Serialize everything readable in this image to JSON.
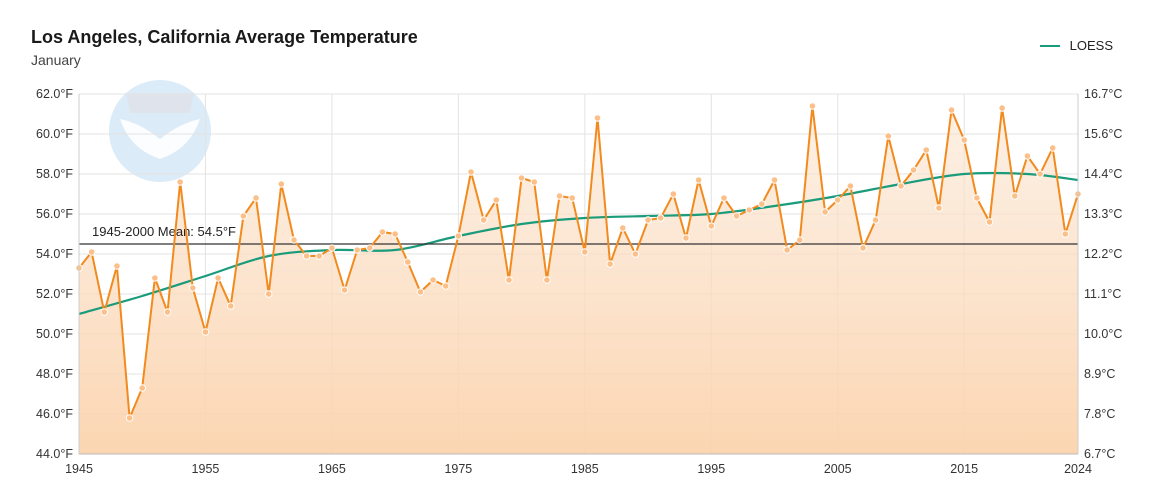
{
  "chart_data": {
    "type": "line",
    "title": "Los Angeles, California Average Temperature",
    "subtitle": "January",
    "x_range": [
      1945,
      2024
    ],
    "x_ticks": [
      1945,
      1955,
      1965,
      1975,
      1985,
      1995,
      2005,
      2015,
      2024
    ],
    "ylim": [
      44.0,
      62.0
    ],
    "y_ticks_f": [
      "44.0°F",
      "46.0°F",
      "48.0°F",
      "50.0°F",
      "52.0°F",
      "54.0°F",
      "56.0°F",
      "58.0°F",
      "60.0°F",
      "62.0°F"
    ],
    "y_ticks_c": [
      "6.7°C",
      "7.8°C",
      "8.9°C",
      "10.0°C",
      "11.1°C",
      "12.2°C",
      "13.3°C",
      "14.4°C",
      "15.6°C",
      "16.7°C"
    ],
    "mean": {
      "value": 54.5,
      "label": "1945-2000 Mean: 54.5°F"
    },
    "legend": [
      {
        "name": "LOESS",
        "color": "#1a9b7b"
      }
    ],
    "series": [
      {
        "name": "Average Temperature",
        "color": "#f28a1e",
        "years": [
          1945,
          1946,
          1947,
          1948,
          1949,
          1950,
          1951,
          1952,
          1953,
          1954,
          1955,
          1956,
          1957,
          1958,
          1959,
          1960,
          1961,
          1962,
          1963,
          1964,
          1965,
          1966,
          1967,
          1968,
          1969,
          1970,
          1971,
          1972,
          1973,
          1974,
          1975,
          1976,
          1977,
          1978,
          1979,
          1980,
          1981,
          1982,
          1983,
          1984,
          1985,
          1986,
          1987,
          1988,
          1989,
          1990,
          1991,
          1992,
          1993,
          1994,
          1995,
          1996,
          1997,
          1998,
          1999,
          2000,
          2001,
          2002,
          2003,
          2004,
          2005,
          2006,
          2007,
          2008,
          2009,
          2010,
          2011,
          2012,
          2013,
          2014,
          2015,
          2016,
          2017,
          2018,
          2019,
          2020,
          2021,
          2022,
          2023,
          2024
        ],
        "values": [
          53.3,
          54.1,
          51.1,
          53.4,
          45.8,
          47.3,
          52.8,
          51.1,
          57.6,
          52.3,
          50.1,
          52.8,
          51.4,
          55.9,
          56.8,
          52.0,
          57.5,
          54.7,
          53.9,
          53.9,
          54.3,
          52.2,
          54.2,
          54.3,
          55.1,
          55.0,
          53.6,
          52.1,
          52.7,
          52.4,
          54.9,
          58.1,
          55.7,
          56.7,
          52.7,
          57.8,
          57.6,
          52.7,
          56.9,
          56.8,
          54.1,
          60.8,
          53.5,
          55.3,
          54.0,
          55.7,
          55.8,
          57.0,
          54.8,
          57.7,
          55.4,
          56.8,
          55.9,
          56.2,
          56.5,
          57.7,
          54.2,
          54.7,
          61.4,
          56.1,
          56.7,
          57.4,
          54.3,
          55.7,
          59.9,
          57.4,
          58.2,
          59.2,
          56.3,
          61.2,
          59.7,
          56.8,
          55.6,
          61.3,
          56.9,
          58.9,
          58.0,
          59.3,
          55.0,
          57.0
        ]
      },
      {
        "name": "LOESS",
        "color": "#1a9b7b",
        "years": [
          1945,
          1950,
          1955,
          1960,
          1965,
          1970,
          1975,
          1980,
          1985,
          1990,
          1995,
          2000,
          2005,
          2010,
          2015,
          2020,
          2024
        ],
        "values": [
          51.0,
          51.9,
          52.9,
          53.9,
          54.2,
          54.2,
          54.9,
          55.5,
          55.8,
          55.9,
          56.0,
          56.4,
          56.9,
          57.5,
          58.0,
          58.0,
          57.7
        ]
      }
    ]
  }
}
